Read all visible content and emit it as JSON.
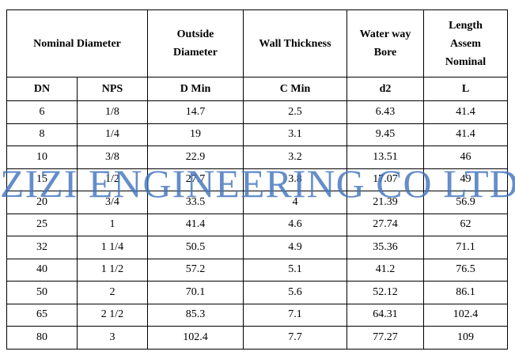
{
  "table": {
    "header_top": {
      "nominal_diameter": "Nominal Diameter",
      "outside_diameter": [
        "Outside",
        "Diameter"
      ],
      "wall_thickness": "Wall Thickness",
      "water_way_bore": [
        "Water way",
        "Bore"
      ],
      "length": [
        "Length",
        "Assem",
        "Nominal"
      ]
    },
    "header_sub": [
      "DN",
      "NPS",
      "D Min",
      "C Min",
      "d2",
      "L"
    ],
    "rows": [
      [
        "6",
        "1/8",
        "14.7",
        "2.5",
        "6.43",
        "41.4"
      ],
      [
        "8",
        "1/4",
        "19",
        "3.1",
        "9.45",
        "41.4"
      ],
      [
        "10",
        "3/8",
        "22.9",
        "3.2",
        "13.51",
        "46"
      ],
      [
        "15",
        "1/2",
        "27.7",
        "3.8",
        "17.07",
        "49"
      ],
      [
        "20",
        "3/4",
        "33.5",
        "4",
        "21.39",
        "56.9"
      ],
      [
        "25",
        "1",
        "41.4",
        "4.6",
        "27.74",
        "62"
      ],
      [
        "32",
        "1 1/4",
        "50.5",
        "4.9",
        "35.36",
        "71.1"
      ],
      [
        "40",
        "1 1/2",
        "57.2",
        "5.1",
        "41.2",
        "76.5"
      ],
      [
        "50",
        "2",
        "70.1",
        "5.6",
        "52.12",
        "86.1"
      ],
      [
        "65",
        "2 1/2",
        "85.3",
        "7.1",
        "64.31",
        "102.4"
      ],
      [
        "80",
        "3",
        "102.4",
        "7.7",
        "77.27",
        "109"
      ]
    ]
  },
  "watermark": {
    "text": "ZIZI ENGINEERING CO LTD",
    "color": "#4274be"
  }
}
